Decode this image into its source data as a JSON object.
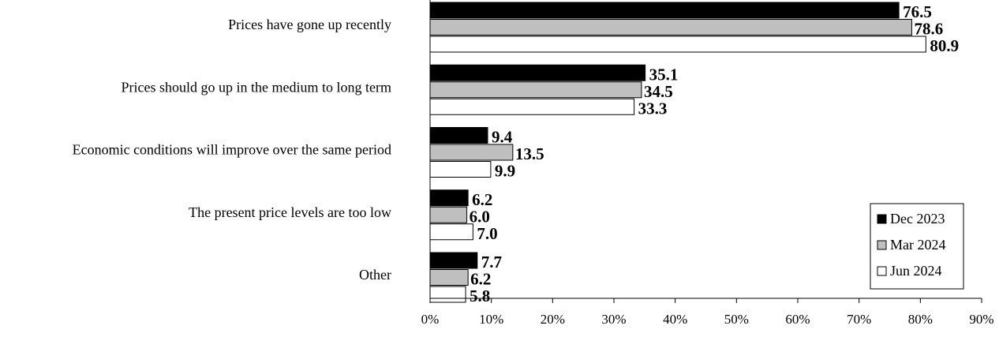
{
  "chart_data": {
    "type": "bar",
    "orientation": "horizontal",
    "categories": [
      "Prices have gone up recently",
      "Prices should  go up in the medium to long term",
      "Economic conditions will improve over the same period",
      "The present price levels are too low",
      "Other"
    ],
    "series": [
      {
        "name": "Dec 2023",
        "values": [
          76.5,
          35.1,
          9.4,
          6.2,
          7.7
        ],
        "color": "#000000"
      },
      {
        "name": "Mar 2024",
        "values": [
          78.6,
          34.5,
          13.5,
          6.0,
          6.2
        ],
        "color": "#bfbfbf"
      },
      {
        "name": "Jun 2024",
        "values": [
          80.9,
          33.3,
          9.9,
          7.0,
          5.8
        ],
        "color": "#ffffff"
      }
    ],
    "xlim": [
      0,
      90
    ],
    "xticks": [
      "0%",
      "10%",
      "20%",
      "30%",
      "40%",
      "50%",
      "60%",
      "70%",
      "80%",
      "90%"
    ],
    "value_unit": "%",
    "legend_position": "bottom-right",
    "grid": false,
    "title": "",
    "xlabel": "",
    "ylabel": ""
  }
}
